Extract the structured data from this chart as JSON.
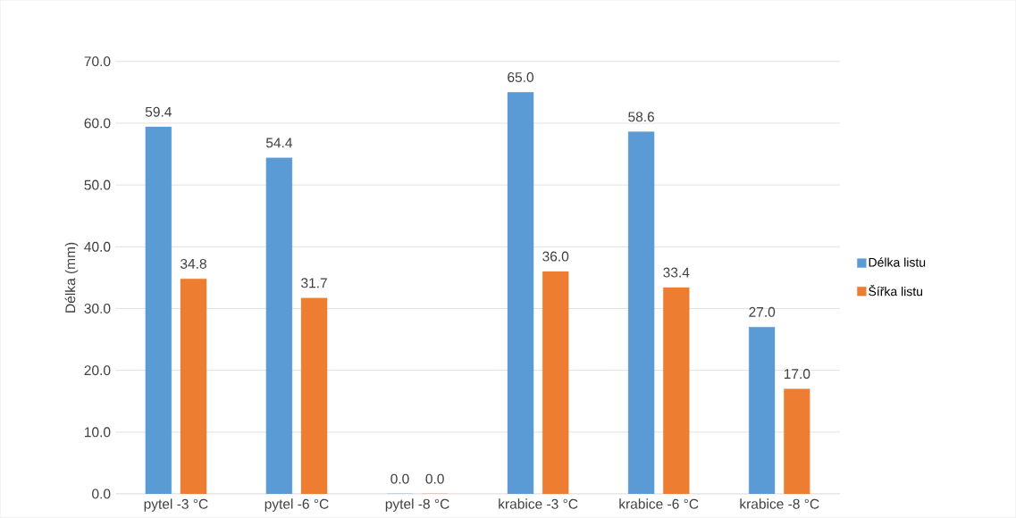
{
  "chart_data": {
    "type": "bar",
    "ylabel": "Délka (mm)",
    "categories": [
      "pytel -3  °C",
      "pytel -6  °C",
      "pytel -8  °C",
      "krabice -3  °C",
      "krabice -6  °C",
      "krabice -8  °C"
    ],
    "series": [
      {
        "name": "Délka listu",
        "color": "#5b9bd5",
        "values": [
          59.4,
          54.4,
          0.0,
          65.0,
          58.6,
          27.0
        ],
        "value_labels": [
          "59.4",
          "54.4",
          "0.0",
          "65.0",
          "58.6",
          "27.0"
        ]
      },
      {
        "name": "Šířka listu",
        "color": "#ed7d31",
        "values": [
          34.8,
          31.7,
          0.0,
          36.0,
          33.4,
          17.0
        ],
        "value_labels": [
          "34.8",
          "31.7",
          "0.0",
          "36.0",
          "33.4",
          "17.0"
        ]
      }
    ],
    "ylim": [
      0,
      70
    ],
    "yticks": [
      {
        "value": 0,
        "label": "0.0"
      },
      {
        "value": 10,
        "label": "10.0"
      },
      {
        "value": 20,
        "label": "20.0"
      },
      {
        "value": 30,
        "label": "30.0"
      },
      {
        "value": 40,
        "label": "40.0"
      },
      {
        "value": 50,
        "label": "50.0"
      },
      {
        "value": 60,
        "label": "60.0"
      },
      {
        "value": 70,
        "label": "70.0"
      }
    ],
    "grid": "y",
    "legend": "right"
  }
}
